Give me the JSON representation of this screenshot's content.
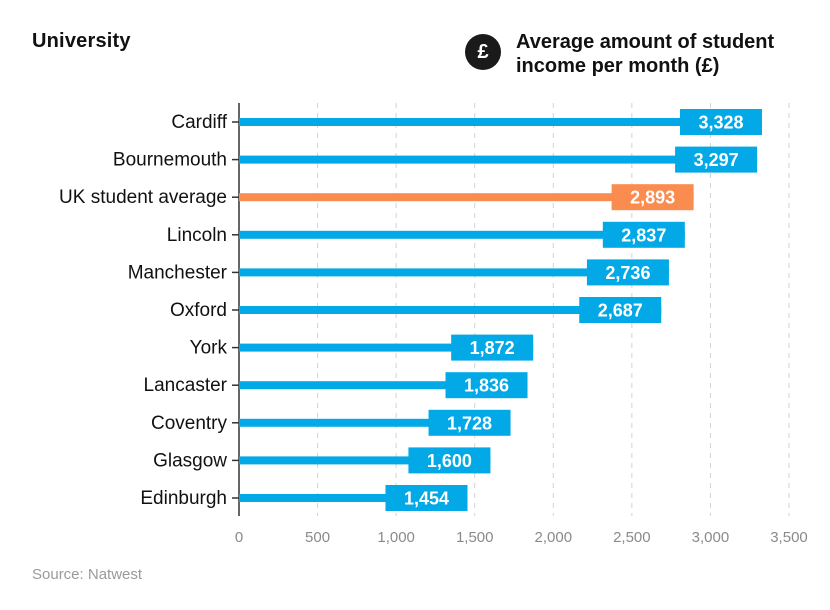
{
  "header": {
    "y_label": "University",
    "title": "Average amount of student income per month (£)",
    "icon": "pound-icon",
    "icon_glyph": "£"
  },
  "source": "Source: Natwest",
  "colors": {
    "bar": "#03a9e6",
    "highlight": "#fa8c50",
    "grid": "#d2d2d2",
    "axis": "#333333",
    "tick_text": "#8a8a8a"
  },
  "chart_data": {
    "type": "bar",
    "orientation": "horizontal",
    "title": "Average amount of student income per month (£)",
    "ylabel": "University",
    "xlabel": "",
    "categories": [
      "Cardiff",
      "Bournemouth",
      "UK student average",
      "Lincoln",
      "Manchester",
      "Oxford",
      "York",
      "Lancaster",
      "Coventry",
      "Glasgow",
      "Edinburgh"
    ],
    "values": [
      3328,
      3297,
      2893,
      2837,
      2736,
      2687,
      1872,
      1836,
      1728,
      1600,
      1454
    ],
    "value_labels": [
      "3,328",
      "3,297",
      "2,893",
      "2,837",
      "2,736",
      "2,687",
      "1,872",
      "1,836",
      "1,728",
      "1,600",
      "1,454"
    ],
    "highlight": "UK student average",
    "xlim": [
      0,
      3500
    ],
    "xticks": [
      0,
      500,
      1000,
      1500,
      2000,
      2500,
      3000,
      3500
    ],
    "xtick_labels": [
      "0",
      "500",
      "1,000",
      "1,500",
      "2,000",
      "2,500",
      "3,000",
      "3,500"
    ],
    "grid": "vertical dashed"
  }
}
